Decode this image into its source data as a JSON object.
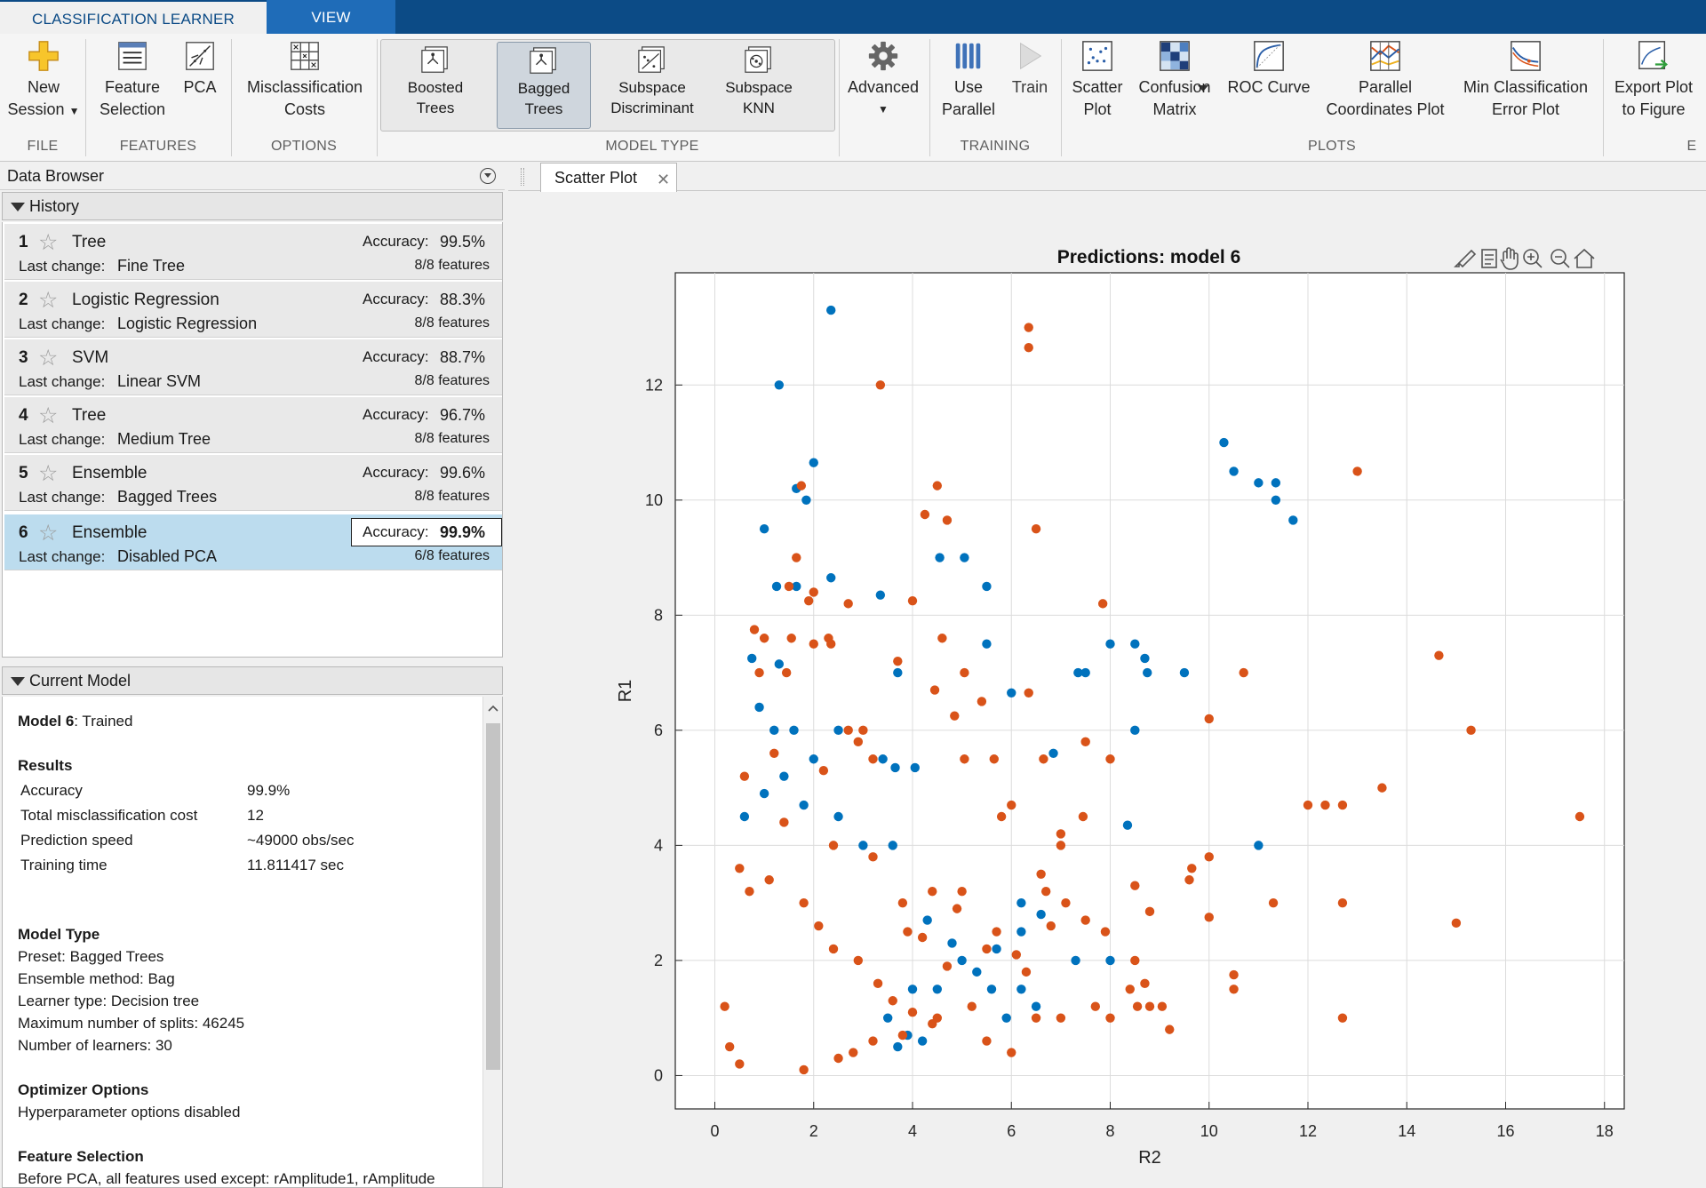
{
  "tabs": {
    "learner": "CLASSIFICATION LEARNER",
    "view": "VIEW"
  },
  "toolstrip": {
    "new_session_1": "New",
    "new_session_2": "Session",
    "feature_selection_1": "Feature",
    "feature_selection_2": "Selection",
    "pca": "PCA",
    "misclass_1": "Misclassification",
    "misclass_2": "Costs",
    "boosted_1": "Boosted",
    "boosted_2": "Trees",
    "bagged_1": "Bagged",
    "bagged_2": "Trees",
    "subdisc_1": "Subspace",
    "subdisc_2": "Discriminant",
    "subknn_1": "Subspace",
    "subknn_2": "KNN",
    "advanced": "Advanced",
    "use_parallel_1": "Use",
    "use_parallel_2": "Parallel",
    "train": "Train",
    "scatter_1": "Scatter",
    "scatter_2": "Plot",
    "confusion_1": "Confusion",
    "confusion_2": "Matrix",
    "roc": "ROC Curve",
    "parallel_1": "Parallel",
    "parallel_2": "Coordinates Plot",
    "minerr_1": "Min Classification",
    "minerr_2": "Error Plot",
    "export_1": "Export Plot",
    "export_2": "to Figure",
    "sections": {
      "file": "FILE",
      "features": "FEATURES",
      "options": "OPTIONS",
      "model_type": "MODEL TYPE",
      "training": "TRAINING",
      "plots": "PLOTS",
      "export": "E"
    }
  },
  "data_browser": {
    "title": "Data Browser",
    "history_label": "History",
    "accuracy_label": "Accuracy:",
    "last_change_label": "Last change:",
    "history": [
      {
        "num": "1",
        "type": "Tree",
        "last_change": "Fine Tree",
        "accuracy": "99.5%",
        "features": "8/8 features"
      },
      {
        "num": "2",
        "type": "Logistic Regression",
        "last_change": "Logistic Regression",
        "accuracy": "88.3%",
        "features": "8/8 features"
      },
      {
        "num": "3",
        "type": "SVM",
        "last_change": "Linear SVM",
        "accuracy": "88.7%",
        "features": "8/8 features"
      },
      {
        "num": "4",
        "type": "Tree",
        "last_change": "Medium Tree",
        "accuracy": "96.7%",
        "features": "8/8 features"
      },
      {
        "num": "5",
        "type": "Ensemble",
        "last_change": "Bagged Trees",
        "accuracy": "99.6%",
        "features": "8/8 features"
      },
      {
        "num": "6",
        "type": "Ensemble",
        "last_change": "Disabled PCA",
        "accuracy": "99.9%",
        "features": "6/8 features"
      }
    ]
  },
  "current_model": {
    "header": "Current Model",
    "model_name": "Model 6",
    "status": ": Trained",
    "results_title": "Results",
    "results": [
      {
        "label": "Accuracy",
        "value": "99.9%"
      },
      {
        "label": "Total misclassification cost",
        "value": "12"
      },
      {
        "label": "Prediction speed",
        "value": "~49000 obs/sec"
      },
      {
        "label": "Training time",
        "value": "11.811417 sec"
      }
    ],
    "model_type_title": "Model Type",
    "model_type_lines": [
      "Preset: Bagged Trees",
      "Ensemble method: Bag",
      "Learner type: Decision tree",
      "Maximum number of splits: 46245",
      "Number of learners: 30"
    ],
    "optimizer_title": "Optimizer Options",
    "optimizer_line": "Hyperparameter options disabled",
    "feature_sel_title": "Feature Selection",
    "feature_sel_line": "Before PCA, all features used except: rAmplitude1, rAmplitude"
  },
  "document_tab": "Scatter Plot",
  "colors": {
    "series_blue": "#0072bd",
    "series_orange": "#d95319",
    "selected_row": "#bcdcee",
    "tab_blue": "#0c4b86"
  },
  "chart_data": {
    "type": "scatter",
    "title": "Predictions: model 6",
    "xlabel": "R2",
    "ylabel": "R1",
    "xlim": [
      -0.8,
      18.4
    ],
    "ylim": [
      -0.58,
      13.95
    ],
    "xticks": [
      0,
      2,
      4,
      6,
      8,
      10,
      12,
      14,
      16,
      18
    ],
    "yticks": [
      0,
      2,
      4,
      6,
      8,
      10,
      12
    ],
    "grid": true,
    "series": [
      {
        "color": "#0072bd",
        "points": [
          [
            2.35,
            13.3
          ],
          [
            1.3,
            12.0
          ],
          [
            2.0,
            10.65
          ],
          [
            1.85,
            10.0
          ],
          [
            1.65,
            10.2
          ],
          [
            10.3,
            11.0
          ],
          [
            10.5,
            10.5
          ],
          [
            11.0,
            10.3
          ],
          [
            11.35,
            10.3
          ],
          [
            11.35,
            10.0
          ],
          [
            11.7,
            9.65
          ],
          [
            1.0,
            9.5
          ],
          [
            4.55,
            9.0
          ],
          [
            5.05,
            9.0
          ],
          [
            2.35,
            8.65
          ],
          [
            1.25,
            8.5
          ],
          [
            1.65,
            8.5
          ],
          [
            3.35,
            8.35
          ],
          [
            5.5,
            8.5
          ],
          [
            8.0,
            7.5
          ],
          [
            8.5,
            7.5
          ],
          [
            8.7,
            7.25
          ],
          [
            8.75,
            7.0
          ],
          [
            9.5,
            7.0
          ],
          [
            7.5,
            7.0
          ],
          [
            7.35,
            7.0
          ],
          [
            3.7,
            7.0
          ],
          [
            6.0,
            6.65
          ],
          [
            0.75,
            7.25
          ],
          [
            1.3,
            7.15
          ],
          [
            5.5,
            7.5
          ],
          [
            8.5,
            6.0
          ],
          [
            6.85,
            5.6
          ],
          [
            0.9,
            6.4
          ],
          [
            1.2,
            6.0
          ],
          [
            1.6,
            6.0
          ],
          [
            2.5,
            6.0
          ],
          [
            3.4,
            5.5
          ],
          [
            3.65,
            5.35
          ],
          [
            4.05,
            5.35
          ],
          [
            8.35,
            4.35
          ],
          [
            11.0,
            4.0
          ],
          [
            8.0,
            2.0
          ],
          [
            2.0,
            5.5
          ],
          [
            1.0,
            4.9
          ],
          [
            2.5,
            4.5
          ],
          [
            3.0,
            4.0
          ],
          [
            3.6,
            4.0
          ],
          [
            0.6,
            4.5
          ],
          [
            1.4,
            5.2
          ],
          [
            1.8,
            4.7
          ],
          [
            6.2,
            3.0
          ],
          [
            6.6,
            2.8
          ],
          [
            6.2,
            2.5
          ],
          [
            5.7,
            2.2
          ],
          [
            5.3,
            1.8
          ],
          [
            5.6,
            1.5
          ],
          [
            6.2,
            1.5
          ],
          [
            5.9,
            1.0
          ],
          [
            7.3,
            2.0
          ],
          [
            4.3,
            2.7
          ],
          [
            4.8,
            2.3
          ],
          [
            5.0,
            2.0
          ],
          [
            4.5,
            1.5
          ],
          [
            4.0,
            1.5
          ],
          [
            3.5,
            1.0
          ],
          [
            3.7,
            0.5
          ],
          [
            3.9,
            0.7
          ],
          [
            4.2,
            0.6
          ],
          [
            6.5,
            1.2
          ]
        ]
      },
      {
        "color": "#d95319",
        "points": [
          [
            6.35,
            13.0
          ],
          [
            6.35,
            12.65
          ],
          [
            3.35,
            12.0
          ],
          [
            4.5,
            10.25
          ],
          [
            1.75,
            10.25
          ],
          [
            13.0,
            10.5
          ],
          [
            4.25,
            9.75
          ],
          [
            4.7,
            9.65
          ],
          [
            6.5,
            9.5
          ],
          [
            1.65,
            9.0
          ],
          [
            1.5,
            8.5
          ],
          [
            2.0,
            8.4
          ],
          [
            1.9,
            8.25
          ],
          [
            2.7,
            8.2
          ],
          [
            4.0,
            8.25
          ],
          [
            7.85,
            8.2
          ],
          [
            0.8,
            7.75
          ],
          [
            1.55,
            7.6
          ],
          [
            2.3,
            7.6
          ],
          [
            4.6,
            7.6
          ],
          [
            14.65,
            7.3
          ],
          [
            3.7,
            7.2
          ],
          [
            1.0,
            7.6
          ],
          [
            0.9,
            7.0
          ],
          [
            1.45,
            7.0
          ],
          [
            2.0,
            7.5
          ],
          [
            2.35,
            7.5
          ],
          [
            10.7,
            7.0
          ],
          [
            5.05,
            7.0
          ],
          [
            4.45,
            6.7
          ],
          [
            6.35,
            6.65
          ],
          [
            5.4,
            6.5
          ],
          [
            4.85,
            6.25
          ],
          [
            10.0,
            6.2
          ],
          [
            15.3,
            6.0
          ],
          [
            7.5,
            5.8
          ],
          [
            8.0,
            5.5
          ],
          [
            6.65,
            5.5
          ],
          [
            5.05,
            5.5
          ],
          [
            5.65,
            5.5
          ],
          [
            13.5,
            5.0
          ],
          [
            12.0,
            4.7
          ],
          [
            12.35,
            4.7
          ],
          [
            12.7,
            4.7
          ],
          [
            17.5,
            4.5
          ],
          [
            6.0,
            4.7
          ],
          [
            5.8,
            4.5
          ],
          [
            7.45,
            4.5
          ],
          [
            7.0,
            4.2
          ],
          [
            7.0,
            4.0
          ],
          [
            10.0,
            3.8
          ],
          [
            9.65,
            3.6
          ],
          [
            9.6,
            3.4
          ],
          [
            11.3,
            3.0
          ],
          [
            12.7,
            3.0
          ],
          [
            10.0,
            2.75
          ],
          [
            15.0,
            2.65
          ],
          [
            8.5,
            3.3
          ],
          [
            8.8,
            2.85
          ],
          [
            6.6,
            3.5
          ],
          [
            6.7,
            3.2
          ],
          [
            7.1,
            3.0
          ],
          [
            7.5,
            2.7
          ],
          [
            7.9,
            2.5
          ],
          [
            8.5,
            2.0
          ],
          [
            8.7,
            1.6
          ],
          [
            8.4,
            1.5
          ],
          [
            10.5,
            1.75
          ],
          [
            10.5,
            1.5
          ],
          [
            7.7,
            1.2
          ],
          [
            8.55,
            1.2
          ],
          [
            8.8,
            1.2
          ],
          [
            9.05,
            1.2
          ],
          [
            9.2,
            0.8
          ],
          [
            8.0,
            1.0
          ],
          [
            7.0,
            1.0
          ],
          [
            6.5,
            1.0
          ],
          [
            6.0,
            0.4
          ],
          [
            5.5,
            0.6
          ],
          [
            12.7,
            1.0
          ],
          [
            2.7,
            6.0
          ],
          [
            2.9,
            5.8
          ],
          [
            3.0,
            6.0
          ],
          [
            3.2,
            5.5
          ],
          [
            2.2,
            5.3
          ],
          [
            1.2,
            5.6
          ],
          [
            0.6,
            5.2
          ],
          [
            1.4,
            4.4
          ],
          [
            2.4,
            4.0
          ],
          [
            3.2,
            3.8
          ],
          [
            4.4,
            3.2
          ],
          [
            4.9,
            2.9
          ],
          [
            5.0,
            3.2
          ],
          [
            5.7,
            2.5
          ],
          [
            5.5,
            2.2
          ],
          [
            6.1,
            2.1
          ],
          [
            3.9,
            2.5
          ],
          [
            4.7,
            1.9
          ],
          [
            5.2,
            1.2
          ],
          [
            4.5,
            1.0
          ],
          [
            3.8,
            0.7
          ],
          [
            3.2,
            0.6
          ],
          [
            2.8,
            0.4
          ],
          [
            2.5,
            0.3
          ],
          [
            1.8,
            0.1
          ],
          [
            0.5,
            0.2
          ],
          [
            0.3,
            0.5
          ],
          [
            0.2,
            1.2
          ],
          [
            3.8,
            3.0
          ],
          [
            4.2,
            2.4
          ],
          [
            6.8,
            2.6
          ],
          [
            6.3,
            1.8
          ],
          [
            0.5,
            3.6
          ],
          [
            0.7,
            3.2
          ],
          [
            1.1,
            3.4
          ],
          [
            1.8,
            3.0
          ],
          [
            2.1,
            2.6
          ],
          [
            2.4,
            2.2
          ],
          [
            2.9,
            2.0
          ],
          [
            3.3,
            1.6
          ],
          [
            3.6,
            1.3
          ],
          [
            4.0,
            1.1
          ],
          [
            4.4,
            0.9
          ]
        ]
      }
    ]
  }
}
